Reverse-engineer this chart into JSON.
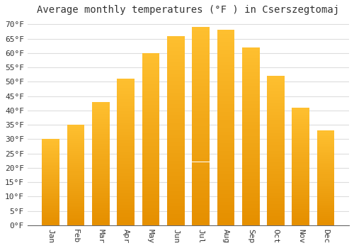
{
  "title": "Average monthly temperatures (°F ) in Cserszegtomaj",
  "months": [
    "Jan",
    "Feb",
    "Mar",
    "Apr",
    "May",
    "Jun",
    "Jul",
    "Aug",
    "Sep",
    "Oct",
    "Nov",
    "Dec"
  ],
  "values": [
    30,
    35,
    43,
    51,
    60,
    66,
    69,
    68,
    62,
    52,
    41,
    33
  ],
  "bar_color": "#FFA500",
  "bar_color_gradient_top": "#FFD080",
  "background_color": "#FFFFFF",
  "grid_color": "#DDDDDD",
  "text_color": "#333333",
  "ylim": [
    0,
    72
  ],
  "ytick_min": 0,
  "ytick_max": 70,
  "ytick_step": 5,
  "title_fontsize": 10,
  "tick_fontsize": 8,
  "font_family": "monospace"
}
